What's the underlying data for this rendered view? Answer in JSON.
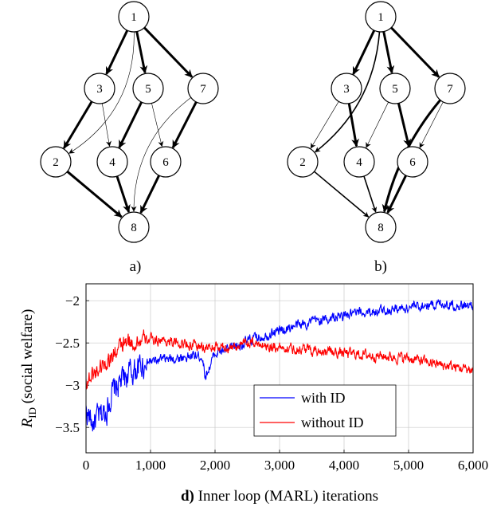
{
  "graphs": [
    {
      "caption": "a)",
      "nodes": [
        "1",
        "3",
        "5",
        "7",
        "2",
        "4",
        "6",
        "8"
      ],
      "edges": [
        {
          "from": "1",
          "to": "3",
          "weight": "thick"
        },
        {
          "from": "1",
          "to": "5",
          "weight": "thick"
        },
        {
          "from": "1",
          "to": "7",
          "weight": "thick"
        },
        {
          "from": "1",
          "to": "2",
          "weight": "thin"
        },
        {
          "from": "3",
          "to": "2",
          "weight": "thick"
        },
        {
          "from": "3",
          "to": "4",
          "weight": "thin"
        },
        {
          "from": "5",
          "to": "4",
          "weight": "thick"
        },
        {
          "from": "5",
          "to": "6",
          "weight": "thin"
        },
        {
          "from": "7",
          "to": "6",
          "weight": "thick"
        },
        {
          "from": "7",
          "to": "8",
          "weight": "thin"
        },
        {
          "from": "2",
          "to": "8",
          "weight": "thick"
        },
        {
          "from": "4",
          "to": "8",
          "weight": "thick"
        },
        {
          "from": "6",
          "to": "8",
          "weight": "thick"
        }
      ]
    },
    {
      "caption": "b)",
      "nodes": [
        "1",
        "3",
        "5",
        "7",
        "2",
        "4",
        "6",
        "8"
      ],
      "edges": [
        {
          "from": "1",
          "to": "3",
          "weight": "thick"
        },
        {
          "from": "1",
          "to": "5",
          "weight": "thick"
        },
        {
          "from": "1",
          "to": "7",
          "weight": "thick"
        },
        {
          "from": "1",
          "to": "2",
          "weight": "medium"
        },
        {
          "from": "3",
          "to": "2",
          "weight": "thin"
        },
        {
          "from": "3",
          "to": "4",
          "weight": "thick"
        },
        {
          "from": "5",
          "to": "4",
          "weight": "thin"
        },
        {
          "from": "5",
          "to": "6",
          "weight": "thick"
        },
        {
          "from": "7",
          "to": "6",
          "weight": "thin"
        },
        {
          "from": "7",
          "to": "8",
          "weight": "thick"
        },
        {
          "from": "2",
          "to": "8",
          "weight": "medium"
        },
        {
          "from": "4",
          "to": "8",
          "weight": "medium"
        },
        {
          "from": "6",
          "to": "8",
          "weight": "thick"
        }
      ]
    }
  ],
  "chart_data": {
    "type": "line",
    "xlabel_bold": "d)",
    "xlabel": " Inner loop (MARL) iterations",
    "ylabel_main": "R",
    "ylabel_sub": "ID",
    "ylabel_rest": " (social welfare)",
    "xlim": [
      0,
      6000
    ],
    "ylim": [
      -3.8,
      -1.8
    ],
    "xticks": [
      0,
      1000,
      2000,
      3000,
      4000,
      5000,
      6000
    ],
    "xtick_labels": [
      "0",
      "1,000",
      "2,000",
      "3,000",
      "4,000",
      "5,000",
      "6,000"
    ],
    "yticks": [
      -2,
      -2.5,
      -3,
      -3.5
    ],
    "ytick_labels": [
      "−2",
      "−2.5",
      "−3",
      "−3.5"
    ],
    "grid": true,
    "legend_position": "bottom-right",
    "series": [
      {
        "name": "with ID",
        "color": "#0000ff",
        "x": [
          0,
          100,
          200,
          300,
          400,
          500,
          600,
          700,
          800,
          900,
          1000,
          1200,
          1400,
          1600,
          1800,
          1850,
          2000,
          2200,
          2400,
          2600,
          2800,
          3000,
          3500,
          4000,
          4500,
          5000,
          5500,
          6000
        ],
        "y": [
          -3.3,
          -3.45,
          -3.38,
          -3.32,
          -3.1,
          -3.0,
          -2.9,
          -2.85,
          -2.8,
          -2.75,
          -2.72,
          -2.7,
          -2.68,
          -2.66,
          -2.65,
          -2.9,
          -2.62,
          -2.58,
          -2.52,
          -2.45,
          -2.4,
          -2.35,
          -2.25,
          -2.18,
          -2.12,
          -2.08,
          -2.03,
          -2.07
        ]
      },
      {
        "name": "without ID",
        "color": "#ff0000",
        "x": [
          0,
          100,
          200,
          300,
          400,
          500,
          600,
          800,
          1000,
          1200,
          1400,
          1600,
          1800,
          2000,
          2200,
          2400,
          2600,
          2800,
          3000,
          3500,
          4000,
          4500,
          5000,
          5500,
          6000
        ],
        "y": [
          -2.95,
          -2.88,
          -2.8,
          -2.72,
          -2.65,
          -2.58,
          -2.52,
          -2.48,
          -2.46,
          -2.47,
          -2.5,
          -2.52,
          -2.55,
          -2.56,
          -2.55,
          -2.52,
          -2.5,
          -2.53,
          -2.55,
          -2.58,
          -2.62,
          -2.65,
          -2.68,
          -2.76,
          -2.82
        ]
      }
    ]
  }
}
